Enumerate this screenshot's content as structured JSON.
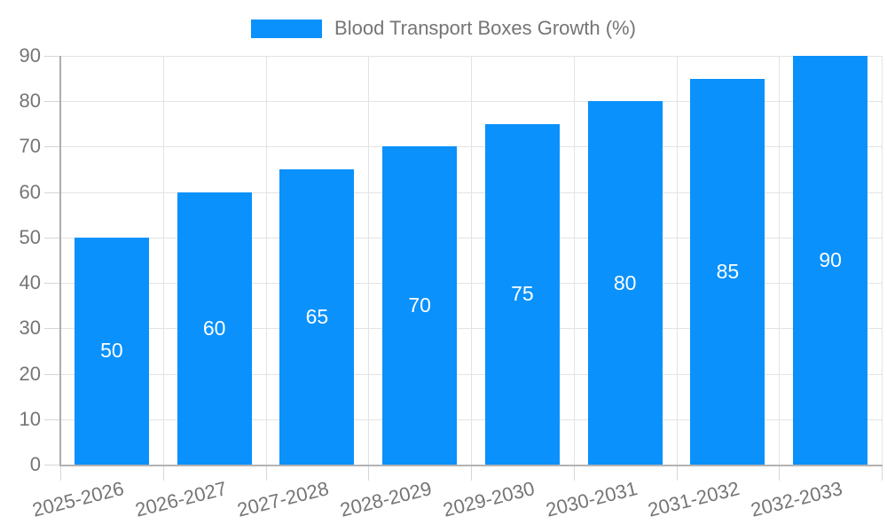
{
  "legend": {
    "label": "Blood Transport Boxes Growth (%)"
  },
  "colors": {
    "bar": "#0a91fb",
    "bar_label_text": "#ffffff",
    "axis_text": "#757575",
    "gridline": "#e3e3e3",
    "axis_line": "#b0b0b0",
    "background": "#ffffff"
  },
  "chart_data": {
    "type": "bar",
    "title": "Blood Transport Boxes Growth (%)",
    "categories": [
      "2025-2026",
      "2026-2027",
      "2027-2028",
      "2028-2029",
      "2029-2030",
      "2030-2031",
      "2031-2032",
      "2032-2033"
    ],
    "values": [
      50,
      60,
      65,
      70,
      75,
      80,
      85,
      90
    ],
    "xlabel": "",
    "ylabel": "",
    "ylim": [
      0,
      90
    ],
    "yticks": [
      0,
      10,
      20,
      30,
      40,
      50,
      60,
      70,
      80,
      90
    ],
    "grid": true,
    "legend_position": "top-center",
    "bar_value_labels": "inside-center",
    "x_tick_label_rotation_deg": -14
  }
}
